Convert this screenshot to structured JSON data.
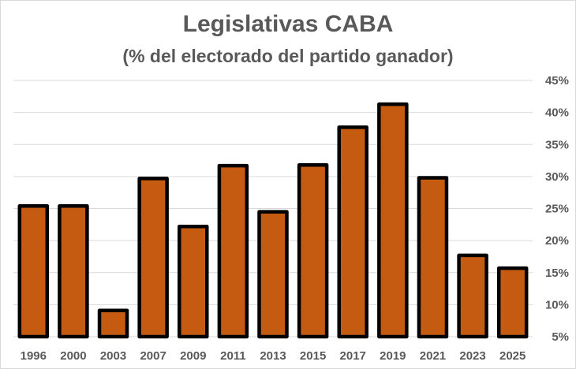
{
  "chart_data": {
    "type": "bar",
    "title": "Legislativas CABA",
    "subtitle": "(% del electorado del partido ganador)",
    "xlabel": "",
    "ylabel": "",
    "categories": [
      "1996",
      "2000",
      "2003",
      "2007",
      "2009",
      "2011",
      "2013",
      "2015",
      "2017",
      "2019",
      "2021",
      "2023",
      "2025"
    ],
    "values": [
      25.4,
      25.4,
      9.1,
      29.7,
      22.2,
      31.7,
      24.5,
      31.8,
      37.7,
      41.3,
      29.8,
      17.7,
      15.7
    ],
    "ylim": [
      5,
      45
    ],
    "yticks": [
      "5%",
      "10%",
      "15%",
      "20%",
      "25%",
      "30%",
      "35%",
      "40%",
      "45%"
    ],
    "y_axis_position": "right",
    "grid": true,
    "legend": "none",
    "colors": {
      "bar": "#c55a11",
      "bar_border": "#000000",
      "grid": "#d9d9d9",
      "text": "#595959"
    }
  }
}
